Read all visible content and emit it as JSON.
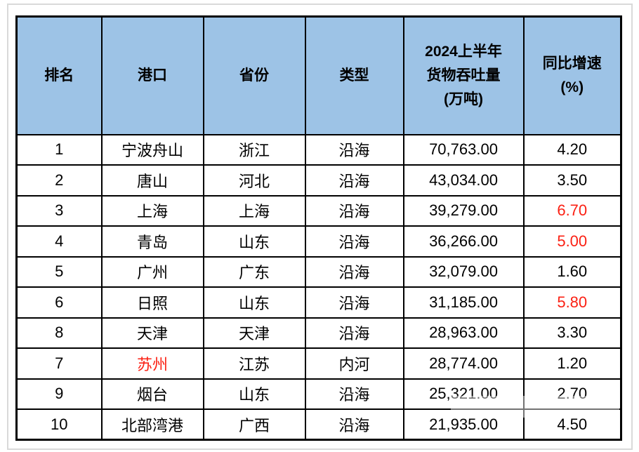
{
  "colors": {
    "header_bg": "#9DC3E6",
    "red_text": "#FB2013",
    "border": "#000000",
    "frame_border": "#D9D9D9"
  },
  "table": {
    "headers": [
      "排名",
      "港口",
      "省份",
      "类型",
      "2024上半年\n货物吞吐量\n(万吨)",
      "同比增速\n(%)"
    ],
    "rows": [
      {
        "rank": "1",
        "port": "宁波舟山",
        "province": "浙江",
        "type": "沿海",
        "throughput": "70,763.00",
        "growth": "4.20",
        "red": []
      },
      {
        "rank": "2",
        "port": "唐山",
        "province": "河北",
        "type": "沿海",
        "throughput": "43,034.00",
        "growth": "3.50",
        "red": []
      },
      {
        "rank": "3",
        "port": "上海",
        "province": "上海",
        "type": "沿海",
        "throughput": "39,279.00",
        "growth": "6.70",
        "red": [
          "growth"
        ]
      },
      {
        "rank": "4",
        "port": "青岛",
        "province": "山东",
        "type": "沿海",
        "throughput": "36,266.00",
        "growth": "5.00",
        "red": [
          "growth"
        ]
      },
      {
        "rank": "5",
        "port": "广州",
        "province": "广东",
        "type": "沿海",
        "throughput": "32,079.00",
        "growth": "1.60",
        "red": []
      },
      {
        "rank": "6",
        "port": "日照",
        "province": "山东",
        "type": "沿海",
        "throughput": "31,185.00",
        "growth": "5.80",
        "red": [
          "growth"
        ]
      },
      {
        "rank": "8",
        "port": "天津",
        "province": "天津",
        "type": "沿海",
        "throughput": "28,963.00",
        "growth": "3.30",
        "red": []
      },
      {
        "rank": "7",
        "port": "苏州",
        "province": "江苏",
        "type": "内河",
        "throughput": "28,774.00",
        "growth": "1.20",
        "red": [
          "port"
        ]
      },
      {
        "rank": "9",
        "port": "烟台",
        "province": "山东",
        "type": "沿海",
        "throughput": "25,321.00",
        "growth": "2.70",
        "red": []
      },
      {
        "rank": "10",
        "port": "北部湾港",
        "province": "广西",
        "type": "沿海",
        "throughput": "21,935.00",
        "growth": "4.50",
        "red": []
      }
    ]
  },
  "chart_data": {
    "type": "table",
    "columns": [
      "排名",
      "港口",
      "省份",
      "类型",
      "2024上半年货物吞吐量(万吨)",
      "同比增速(%)"
    ],
    "rows": [
      [
        "1",
        "宁波舟山",
        "浙江",
        "沿海",
        "70,763.00",
        "4.20"
      ],
      [
        "2",
        "唐山",
        "河北",
        "沿海",
        "43,034.00",
        "3.50"
      ],
      [
        "3",
        "上海",
        "上海",
        "沿海",
        "39,279.00",
        "6.70"
      ],
      [
        "4",
        "青岛",
        "山东",
        "沿海",
        "36,266.00",
        "5.00"
      ],
      [
        "5",
        "广州",
        "广东",
        "沿海",
        "32,079.00",
        "1.60"
      ],
      [
        "6",
        "日照",
        "山东",
        "沿海",
        "31,185.00",
        "5.80"
      ],
      [
        "8",
        "天津",
        "天津",
        "沿海",
        "28,963.00",
        "3.30"
      ],
      [
        "7",
        "苏州",
        "江苏",
        "内河",
        "28,774.00",
        "1.20"
      ],
      [
        "9",
        "烟台",
        "山东",
        "沿海",
        "25,321.00",
        "2.70"
      ],
      [
        "10",
        "北部湾港",
        "广西",
        "沿海",
        "21,935.00",
        "4.50"
      ]
    ],
    "notes": {
      "red_cells": [
        "row3 growth 6.70",
        "row4 growth 5.00",
        "row6 growth 5.80",
        "row8 port 苏州"
      ],
      "header_bg": "#9DC3E6",
      "grid": "black 2px inner borders, 3px outer border"
    }
  }
}
